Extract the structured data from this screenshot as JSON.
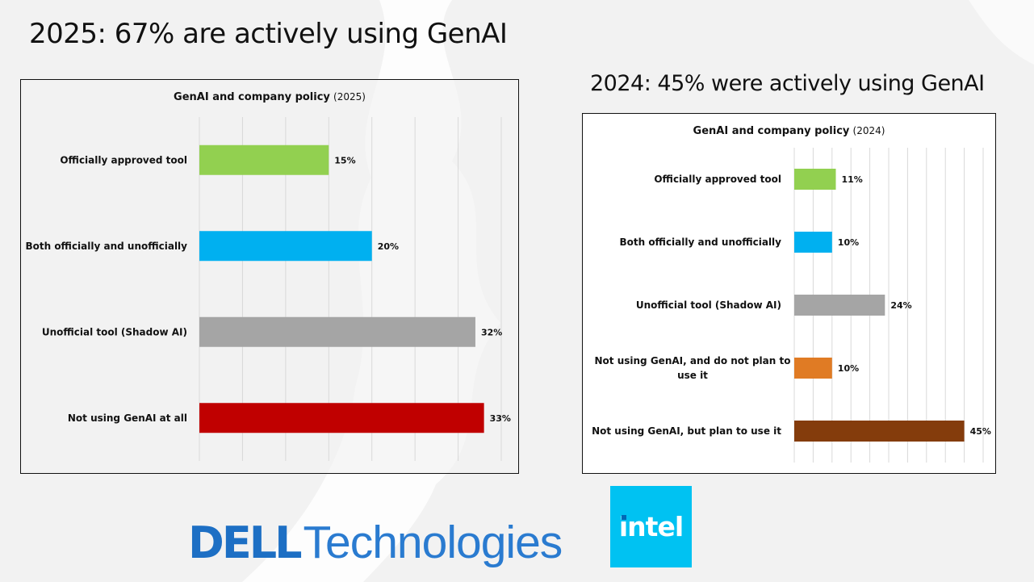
{
  "slide": {
    "title_left": "2025: 67% are actively using GenAI",
    "title_right": "2024: 45% were actively using GenAI"
  },
  "logos": {
    "dell_mark": "DELL",
    "dell_text": "Technologies",
    "intel_text": "intel",
    "dell_color": "#1d6fc4",
    "intel_bg": "#00c2f2"
  },
  "chart_data": [
    {
      "type": "bar",
      "orientation": "horizontal",
      "title": "GenAI and company policy",
      "title_suffix": "(2025)",
      "categories": [
        "Officially approved tool",
        "Both officially and unofficially",
        "Unofficial tool (Shadow AI)",
        "Not using GenAI at all"
      ],
      "values": [
        15,
        20,
        32,
        33
      ],
      "value_labels": [
        "15%",
        "20%",
        "32%",
        "33%"
      ],
      "colors": [
        "#92d050",
        "#00b0f0",
        "#a5a5a5",
        "#c00000"
      ],
      "xlim": [
        0,
        35
      ],
      "grid_step": 5,
      "grid": true,
      "xlabel": "",
      "ylabel": ""
    },
    {
      "type": "bar",
      "orientation": "horizontal",
      "title": "GenAI and company policy",
      "title_suffix": "(2024)",
      "categories": [
        "Officially approved tool",
        "Both officially and unofficially",
        "Unofficial tool (Shadow AI)",
        "Not using GenAI, and do not plan to use it",
        "Not using GenAI, but plan to use it"
      ],
      "category_lines": [
        [
          "Officially approved tool"
        ],
        [
          "Both officially and unofficially"
        ],
        [
          "Unofficial tool (Shadow AI)"
        ],
        [
          "Not using GenAI, and do not plan to",
          "use it"
        ],
        [
          "Not using GenAI, but plan to use it"
        ]
      ],
      "values": [
        11,
        10,
        24,
        10,
        45
      ],
      "value_labels": [
        "11%",
        "10%",
        "24%",
        "10%",
        "45%"
      ],
      "colors": [
        "#92d050",
        "#00b0f0",
        "#a5a5a5",
        "#e07b24",
        "#843c0c"
      ],
      "xlim": [
        0,
        50
      ],
      "grid_step": 5,
      "grid": true,
      "xlabel": "",
      "ylabel": ""
    }
  ]
}
